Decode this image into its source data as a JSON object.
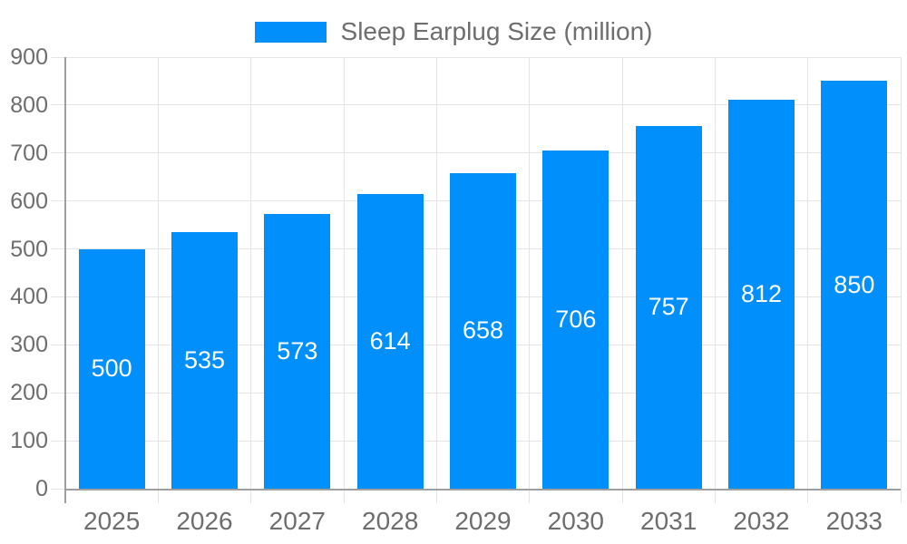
{
  "chart_data": {
    "type": "bar",
    "title": "Sleep Earplug Size (million)",
    "legend": [
      "Sleep Earplug Size (million)"
    ],
    "legend_position": "top",
    "categories": [
      "2025",
      "2026",
      "2027",
      "2028",
      "2029",
      "2030",
      "2031",
      "2032",
      "2033"
    ],
    "values": [
      500,
      535,
      573,
      614,
      658,
      706,
      757,
      812,
      850
    ],
    "value_labels_visible": true,
    "xlabel": "",
    "ylabel": "",
    "ylim": [
      0,
      900
    ],
    "ytick_step": 100,
    "yticks": [
      "0",
      "100",
      "200",
      "300",
      "400",
      "500",
      "600",
      "700",
      "800",
      "900"
    ],
    "grid": "both"
  },
  "colors": {
    "bar": "#008FFB",
    "grid": "#e4e4e4",
    "axis": "#9f9f9f",
    "axis_text": "#6e6e6e",
    "value_label": "#ffffff",
    "background": "#ffffff"
  }
}
